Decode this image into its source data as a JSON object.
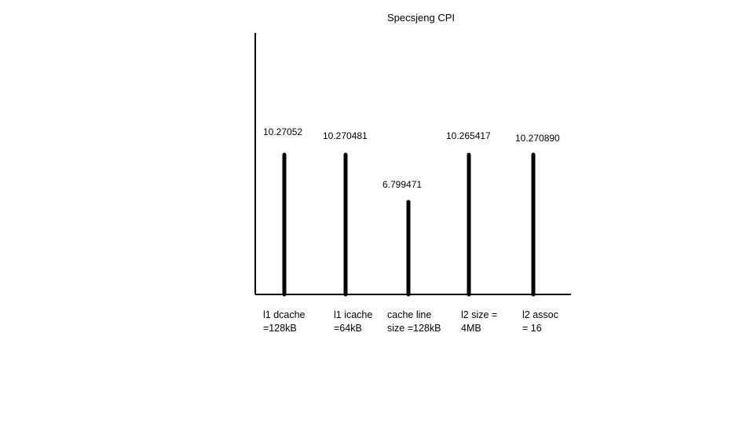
{
  "chart_data": {
    "type": "bar",
    "title": "Specsjeng CPI",
    "xlabel": "",
    "ylabel": "",
    "categories": [
      [
        "l1 dcache",
        "=128kB"
      ],
      [
        "l1 icache",
        "=64kB"
      ],
      [
        "cache line",
        "size =128kB"
      ],
      [
        "l2 size =",
        "4MB"
      ],
      [
        "l2 assoc",
        "= 16"
      ]
    ],
    "values": [
      10.27052,
      10.270481,
      6.799471,
      10.265417,
      10.27089
    ],
    "value_labels": [
      "10.27052",
      "10.270481",
      "6.799471",
      "10.265417",
      "10.270890"
    ],
    "ylim": [
      0,
      10.27
    ],
    "grid": false,
    "legend": "none"
  }
}
